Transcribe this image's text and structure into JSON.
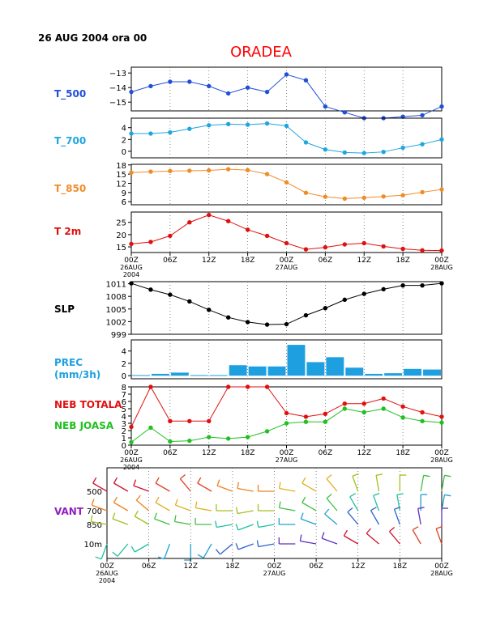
{
  "header": {
    "datetime": "26 AUG 2004 ora 00",
    "station": "ORADEA"
  },
  "colors": {
    "title": "#ff0000",
    "t500": "#2050d8",
    "t700": "#1ea6e0",
    "t850": "#f08c28",
    "t2m": "#e01010",
    "slp": "#000000",
    "prec": "#1ea0e0",
    "neb_totala": "#e01010",
    "neb_joasa": "#20c020",
    "vant_label": "#9020c0"
  },
  "time_axis": {
    "labels": [
      "00Z",
      "06Z",
      "12Z",
      "18Z",
      "00Z",
      "06Z",
      "12Z",
      "18Z",
      "00Z"
    ],
    "date_labels": [
      "26AUG",
      "27AUG",
      "28AUG"
    ],
    "year": "2004"
  },
  "vant_time_axis": {
    "labels": [
      "00Z",
      "06Z",
      "12Z",
      "18Z",
      "00Z",
      "06Z",
      "12Z",
      "18Z",
      "00Z"
    ],
    "date_labels": [
      "26AUG",
      "27AUG",
      "28AUG"
    ],
    "year": "2004"
  },
  "chart_data": [
    {
      "type": "line",
      "label": "T_500",
      "x_hours": [
        0,
        3,
        6,
        9,
        12,
        15,
        18,
        21,
        24,
        27,
        30,
        33,
        36,
        39,
        42,
        45,
        48
      ],
      "values": [
        -14.3,
        -13.9,
        -13.6,
        -13.6,
        -13.9,
        -14.4,
        -14.0,
        -14.3,
        -13.1,
        -13.5,
        -15.3,
        -15.7,
        -16.1,
        -16.1,
        -16.0,
        -15.9,
        -15.3
      ],
      "ylim": [
        -15.6,
        -12.6
      ],
      "yticks": [
        -13,
        -14,
        -15
      ]
    },
    {
      "type": "line",
      "label": "T_700",
      "x_hours": [
        0,
        3,
        6,
        9,
        12,
        15,
        18,
        21,
        24,
        27,
        30,
        33,
        36,
        39,
        42,
        45,
        48
      ],
      "values": [
        3.0,
        3.0,
        3.2,
        3.8,
        4.4,
        4.6,
        4.5,
        4.7,
        4.3,
        1.5,
        0.3,
        -0.2,
        -0.3,
        -0.1,
        0.6,
        1.2,
        2.0
      ],
      "ylim": [
        -1.1,
        5.6
      ],
      "yticks": [
        4,
        2,
        0
      ]
    },
    {
      "type": "line",
      "label": "T_850",
      "x_hours": [
        0,
        3,
        6,
        9,
        12,
        15,
        18,
        21,
        24,
        27,
        30,
        33,
        36,
        39,
        42,
        45,
        48
      ],
      "values": [
        15.5,
        15.8,
        16.0,
        16.1,
        16.2,
        16.6,
        16.3,
        15.0,
        12.3,
        8.9,
        7.6,
        7.0,
        7.3,
        7.7,
        8.1,
        9.1,
        10.0
      ],
      "ylim": [
        5.0,
        18.2
      ],
      "yticks": [
        18,
        15,
        12,
        9,
        6
      ]
    },
    {
      "type": "line",
      "label": "T 2m",
      "x_hours": [
        0,
        3,
        6,
        9,
        12,
        15,
        18,
        21,
        24,
        27,
        30,
        33,
        36,
        39,
        42,
        45,
        48
      ],
      "values": [
        16.2,
        17.0,
        19.5,
        25.0,
        28.0,
        25.5,
        22.0,
        19.5,
        16.5,
        14.0,
        14.8,
        16.0,
        16.5,
        15.2,
        14.2,
        13.6,
        13.5
      ],
      "ylim": [
        12.7,
        29.2
      ],
      "yticks": [
        25,
        20,
        15
      ]
    },
    {
      "type": "line",
      "label": "SLP",
      "x_hours": [
        0,
        3,
        6,
        9,
        12,
        15,
        18,
        21,
        24,
        27,
        30,
        33,
        36,
        39,
        42,
        45,
        48
      ],
      "values": [
        1011.1,
        1009.6,
        1008.4,
        1006.8,
        1004.8,
        1003.0,
        1001.9,
        1001.3,
        1001.4,
        1003.5,
        1005.2,
        1007.2,
        1008.6,
        1009.7,
        1010.6,
        1010.6,
        1011.1
      ],
      "ylim": [
        999.0,
        1011.5
      ],
      "yticks": [
        1011,
        1008,
        1005,
        1002,
        999
      ]
    },
    {
      "type": "bar",
      "label": "PREC (mm/3h)",
      "x_hours": [
        1.5,
        4.5,
        7.5,
        10.5,
        13.5,
        16.5,
        19.5,
        22.5,
        25.5,
        28.5,
        31.5,
        34.5,
        37.5,
        40.5,
        43.5,
        46.5
      ],
      "values": [
        0.1,
        0.3,
        0.5,
        0.1,
        0.1,
        1.7,
        1.5,
        1.5,
        5.0,
        2.2,
        3.0,
        1.3,
        0.3,
        0.4,
        1.1,
        1.0
      ],
      "ylim": [
        -0.5,
        5.8
      ],
      "yticks": [
        4,
        2,
        0
      ]
    },
    {
      "type": "line",
      "series": [
        {
          "name": "NEB TOTALA",
          "x_hours": [
            0,
            3,
            6,
            9,
            12,
            15,
            18,
            21,
            24,
            27,
            30,
            33,
            36,
            39,
            42,
            45,
            48
          ],
          "values": [
            2.5,
            8.0,
            3.3,
            3.3,
            3.3,
            8.0,
            8.0,
            8.0,
            4.4,
            3.9,
            4.3,
            5.7,
            5.7,
            6.4,
            5.3,
            4.5,
            3.9
          ]
        },
        {
          "name": "NEB JOASA",
          "x_hours": [
            0,
            3,
            6,
            9,
            12,
            15,
            18,
            21,
            24,
            27,
            30,
            33,
            36,
            39,
            42,
            45,
            48
          ],
          "values": [
            0.4,
            2.4,
            0.5,
            0.6,
            1.1,
            0.9,
            1.1,
            1.9,
            3.0,
            3.2,
            3.2,
            5.0,
            4.5,
            5.0,
            3.8,
            3.3,
            3.1
          ]
        }
      ],
      "ylim": [
        0,
        8
      ],
      "yticks": [
        8,
        7,
        6,
        5,
        4,
        3,
        2,
        1,
        0
      ]
    },
    {
      "type": "barbs",
      "label": "VANT",
      "levels": [
        "500",
        "700",
        "850",
        "10m"
      ],
      "x_hours": [
        0,
        3,
        6,
        9,
        12,
        15,
        18,
        21,
        24,
        27,
        30,
        33,
        36,
        39,
        42,
        45,
        48
      ]
    }
  ]
}
